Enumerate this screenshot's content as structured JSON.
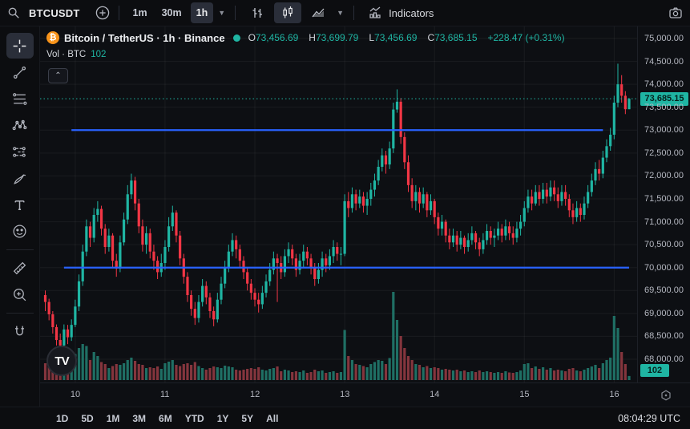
{
  "topbar": {
    "symbol": "BTCUSDT",
    "timeframes": [
      "1m",
      "30m",
      "1h"
    ],
    "active_timeframe": "1h",
    "chart_types": [
      "bars",
      "candles",
      "area"
    ],
    "active_chart_type": "candles",
    "indicators_label": "Indicators"
  },
  "left_toolbar": {
    "tools": [
      "crosshair",
      "trend-line",
      "fib-retracement",
      "xabcd-pattern",
      "long-position",
      "brush",
      "text",
      "emoji",
      "ruler",
      "zoom-in",
      "magnet"
    ],
    "active_tool": "crosshair"
  },
  "legend": {
    "title": "Bitcoin / TetherUS · 1h · Binance",
    "o_label": "O",
    "o_value": "73,456.69",
    "h_label": "H",
    "h_value": "73,699.79",
    "l_label": "L",
    "l_value": "73,456.69",
    "c_label": "C",
    "c_value": "73,685.15",
    "change": "+228.47 (+0.31%)",
    "volume_label": "Vol · BTC",
    "volume_value": "102"
  },
  "price_axis": {
    "last_price_label": "73,685.15",
    "volume_badge": "102"
  },
  "bottom_bar": {
    "ranges": [
      "1D",
      "5D",
      "1M",
      "3M",
      "6M",
      "YTD",
      "1Y",
      "5Y",
      "All"
    ],
    "clock": "08:04:29 UTC"
  },
  "colors": {
    "up": "#1fb5a3",
    "down": "#f23645",
    "vol_up": "#1f6f64",
    "vol_down": "#84353d",
    "line_blue": "#2962ff",
    "accent_orange": "#f7931a",
    "grid": "rgba(255,255,255,0.055)",
    "axis_text": "#b4b7c0"
  },
  "chart_data": {
    "type": "candlestick",
    "title": "Bitcoin / TetherUS · 1h · Binance",
    "symbol": "BTCUSDT",
    "interval": "1h",
    "exchange": "Binance",
    "price_axis_ticks": [
      75000,
      74500,
      74000,
      73500,
      73000,
      72500,
      72000,
      71500,
      71000,
      70500,
      70000,
      69500,
      69000,
      68500,
      68000
    ],
    "price_range": [
      68000,
      75000
    ],
    "grid_step": 500,
    "time_tick_labels": [
      "10",
      "11",
      "12",
      "13",
      "14",
      "15",
      "16"
    ],
    "day_tick_indices": [
      8,
      32,
      56,
      80,
      104,
      128,
      152
    ],
    "last_price": 73685.15,
    "volume_last": 102,
    "volume_scale_max": 2200,
    "horizontal_lines": [
      {
        "price": 73000,
        "from_index": 7,
        "to_index": 149
      },
      {
        "price": 70000,
        "from_index": 5,
        "to_index": 156
      }
    ],
    "first_open": 69400,
    "columns": [
      "close",
      "high",
      "low",
      "volume"
    ],
    "candles": [
      [
        69250,
        69500,
        69050,
        420
      ],
      [
        68980,
        69320,
        68850,
        380
      ],
      [
        68700,
        69050,
        68560,
        350
      ],
      [
        68420,
        68760,
        68300,
        400
      ],
      [
        68300,
        68560,
        68150,
        450
      ],
      [
        68650,
        68760,
        68230,
        380
      ],
      [
        68480,
        68750,
        68330,
        300
      ],
      [
        68750,
        68870,
        68400,
        320
      ],
      [
        69150,
        69300,
        68700,
        650
      ],
      [
        69700,
        69850,
        69050,
        800
      ],
      [
        70350,
        70500,
        69600,
        900
      ],
      [
        70900,
        71050,
        70250,
        850
      ],
      [
        70650,
        71000,
        70450,
        500
      ],
      [
        71150,
        71300,
        70550,
        700
      ],
      [
        71280,
        71450,
        71000,
        600
      ],
      [
        70850,
        71350,
        70700,
        450
      ],
      [
        70450,
        70950,
        70300,
        400
      ],
      [
        70700,
        70850,
        70350,
        300
      ],
      [
        70150,
        70750,
        70000,
        350
      ],
      [
        69980,
        70300,
        69800,
        400
      ],
      [
        70550,
        70700,
        69900,
        380
      ],
      [
        71050,
        71200,
        70480,
        420
      ],
      [
        71600,
        71800,
        70950,
        500
      ],
      [
        71900,
        72050,
        71500,
        560
      ],
      [
        71400,
        71980,
        71250,
        480
      ],
      [
        70900,
        71500,
        70750,
        400
      ],
      [
        70500,
        71050,
        70350,
        380
      ],
      [
        70750,
        70900,
        70300,
        300
      ],
      [
        70350,
        70850,
        70200,
        320
      ],
      [
        70150,
        70500,
        69950,
        300
      ],
      [
        69900,
        70250,
        69750,
        340
      ],
      [
        70100,
        70300,
        69800,
        280
      ],
      [
        70450,
        70600,
        69950,
        420
      ],
      [
        70900,
        71100,
        70350,
        460
      ],
      [
        71200,
        71350,
        70800,
        500
      ],
      [
        70700,
        71250,
        70550,
        380
      ],
      [
        70200,
        70800,
        70050,
        350
      ],
      [
        69800,
        70300,
        69650,
        400
      ],
      [
        69400,
        69900,
        69250,
        420
      ],
      [
        69100,
        69500,
        68950,
        380
      ],
      [
        68900,
        69250,
        68750,
        450
      ],
      [
        69250,
        69400,
        68800,
        350
      ],
      [
        69600,
        69750,
        69150,
        300
      ],
      [
        69350,
        69700,
        69200,
        260
      ],
      [
        69050,
        69450,
        68900,
        300
      ],
      [
        68870,
        69150,
        68720,
        340
      ],
      [
        69300,
        69450,
        68800,
        320
      ],
      [
        69650,
        69800,
        69200,
        300
      ],
      [
        70000,
        70150,
        69550,
        360
      ],
      [
        70350,
        70500,
        69900,
        340
      ],
      [
        70600,
        70750,
        70250,
        320
      ],
      [
        70400,
        70700,
        70200,
        260
      ],
      [
        70150,
        70500,
        70000,
        240
      ],
      [
        69900,
        70250,
        69750,
        260
      ],
      [
        69650,
        70000,
        69500,
        280
      ],
      [
        69450,
        69750,
        69300,
        300
      ],
      [
        69300,
        69550,
        69150,
        280
      ],
      [
        69200,
        69450,
        69020,
        320
      ],
      [
        69450,
        69600,
        69100,
        260
      ],
      [
        69700,
        69850,
        69350,
        240
      ],
      [
        69950,
        70100,
        69600,
        280
      ],
      [
        70200,
        70350,
        69850,
        300
      ],
      [
        70100,
        70300,
        69250,
        340
      ],
      [
        69900,
        70250,
        69750,
        220
      ],
      [
        70250,
        70400,
        69800,
        260
      ],
      [
        70400,
        70550,
        70100,
        240
      ],
      [
        70200,
        70500,
        70050,
        200
      ],
      [
        69950,
        70300,
        69800,
        220
      ],
      [
        70150,
        70300,
        69850,
        200
      ],
      [
        70350,
        70500,
        70000,
        240
      ],
      [
        70200,
        70450,
        70050,
        180
      ],
      [
        70000,
        70300,
        69850,
        200
      ],
      [
        69750,
        70100,
        69600,
        260
      ],
      [
        69950,
        70100,
        69650,
        220
      ],
      [
        70200,
        70350,
        69800,
        240
      ],
      [
        70050,
        70300,
        69900,
        180
      ],
      [
        70250,
        70400,
        69950,
        200
      ],
      [
        70450,
        70600,
        70100,
        220
      ],
      [
        70300,
        70550,
        70150,
        180
      ],
      [
        70300,
        70450,
        70050,
        200
      ],
      [
        71450,
        71600,
        70250,
        1250
      ],
      [
        71300,
        71650,
        71100,
        600
      ],
      [
        71600,
        71750,
        71200,
        500
      ],
      [
        71400,
        71700,
        71250,
        400
      ],
      [
        71550,
        71700,
        71300,
        380
      ],
      [
        71350,
        71650,
        71200,
        350
      ],
      [
        71500,
        71650,
        71150,
        320
      ],
      [
        71700,
        71850,
        71350,
        400
      ],
      [
        71900,
        72050,
        71550,
        450
      ],
      [
        72200,
        72350,
        71800,
        500
      ],
      [
        72450,
        72600,
        72100,
        480
      ],
      [
        72250,
        72550,
        72050,
        400
      ],
      [
        72600,
        72750,
        72150,
        550
      ],
      [
        73450,
        73600,
        72500,
        2200
      ],
      [
        73620,
        73890,
        73380,
        1500
      ],
      [
        72850,
        73700,
        72700,
        1100
      ],
      [
        72300,
        72950,
        72150,
        800
      ],
      [
        71800,
        72450,
        71650,
        600
      ],
      [
        71450,
        71950,
        71300,
        500
      ],
      [
        71650,
        71800,
        71250,
        400
      ],
      [
        71400,
        71750,
        71200,
        380
      ],
      [
        71600,
        71750,
        71300,
        320
      ],
      [
        71250,
        71650,
        71100,
        350
      ],
      [
        71450,
        71600,
        71150,
        300
      ],
      [
        71100,
        71500,
        70950,
        320
      ],
      [
        70850,
        71200,
        70700,
        300
      ],
      [
        71000,
        71150,
        70700,
        260
      ],
      [
        70700,
        71050,
        70550,
        280
      ],
      [
        70550,
        70850,
        70400,
        260
      ],
      [
        70700,
        70850,
        70450,
        240
      ],
      [
        70500,
        70800,
        70350,
        260
      ],
      [
        70650,
        70800,
        70400,
        220
      ],
      [
        70450,
        70700,
        70300,
        240
      ],
      [
        70600,
        70750,
        70350,
        200
      ],
      [
        70750,
        70900,
        70500,
        220
      ],
      [
        70550,
        70800,
        70400,
        200
      ],
      [
        70400,
        70650,
        70250,
        240
      ],
      [
        70600,
        70750,
        70300,
        200
      ],
      [
        70800,
        70950,
        70500,
        220
      ],
      [
        70650,
        70900,
        70500,
        200
      ],
      [
        70700,
        70850,
        70450,
        180
      ],
      [
        70850,
        71000,
        70600,
        200
      ],
      [
        70700,
        70950,
        70550,
        180
      ],
      [
        70900,
        71050,
        70600,
        220
      ],
      [
        70750,
        71000,
        70600,
        190
      ],
      [
        70650,
        70900,
        70500,
        180
      ],
      [
        70850,
        71000,
        70550,
        200
      ],
      [
        71000,
        71150,
        70700,
        240
      ],
      [
        71300,
        71450,
        70900,
        400
      ],
      [
        71550,
        71700,
        71200,
        420
      ],
      [
        71400,
        71700,
        71250,
        300
      ],
      [
        71650,
        71800,
        71350,
        340
      ],
      [
        71500,
        71800,
        71350,
        280
      ],
      [
        71700,
        71850,
        71400,
        320
      ],
      [
        71550,
        71850,
        71400,
        260
      ],
      [
        71750,
        71900,
        71450,
        300
      ],
      [
        71600,
        71900,
        71450,
        240
      ],
      [
        71450,
        71750,
        71300,
        260
      ],
      [
        71650,
        71800,
        71350,
        240
      ],
      [
        71500,
        71800,
        71350,
        220
      ],
      [
        71250,
        71600,
        71100,
        280
      ],
      [
        71100,
        71400,
        70950,
        300
      ],
      [
        71300,
        71450,
        71000,
        240
      ],
      [
        71150,
        71400,
        71000,
        220
      ],
      [
        71400,
        71550,
        71050,
        260
      ],
      [
        71650,
        71800,
        71300,
        300
      ],
      [
        71900,
        72050,
        71550,
        340
      ],
      [
        72150,
        72300,
        71800,
        380
      ],
      [
        72050,
        72350,
        71900,
        300
      ],
      [
        72400,
        72550,
        71950,
        420
      ],
      [
        72650,
        72800,
        72300,
        500
      ],
      [
        72900,
        73050,
        72550,
        560
      ],
      [
        73600,
        73750,
        72800,
        1600
      ],
      [
        74000,
        74450,
        73500,
        1300
      ],
      [
        73750,
        74200,
        73600,
        700
      ],
      [
        73456.69,
        73850,
        73350,
        400
      ],
      [
        73685.15,
        73699.79,
        73456.69,
        102
      ]
    ]
  }
}
